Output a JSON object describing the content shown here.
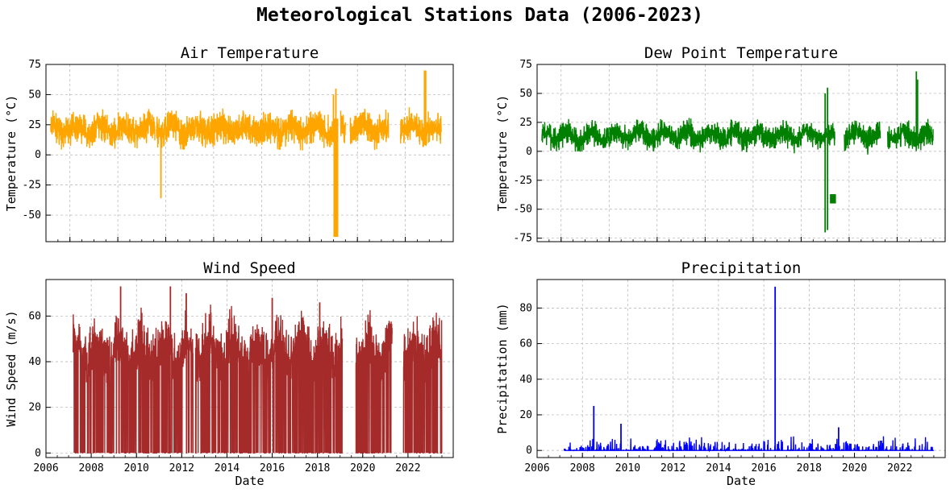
{
  "figure": {
    "title": "Meteorological Stations Data (2006-2023)"
  },
  "chart_data": [
    {
      "type": "line",
      "title": "Air Temperature",
      "xlabel": "",
      "ylabel": "Temperature (°C)",
      "color": "#ffa500",
      "xlim": [
        2007.0,
        2024.0
      ],
      "ylim": [
        -72,
        75
      ],
      "yticks": [
        -50,
        -25,
        0,
        25,
        50,
        75
      ],
      "xticks": [],
      "grid": true,
      "bands": [
        [
          2007.2,
          2011.55
        ],
        [
          2011.6,
          2019.1
        ],
        [
          2019.3,
          2019.5
        ],
        [
          2019.7,
          2021.3
        ],
        [
          2021.8,
          2023.5
        ]
      ],
      "base": [
        18,
        25
      ],
      "spread": [
        8,
        24
      ],
      "outliers": [
        {
          "x": 2011.8,
          "y": -36
        },
        {
          "x": 2019.0,
          "y": 50
        },
        {
          "x": 2019.1,
          "y": 55
        },
        {
          "x": 2022.8,
          "y": 70
        },
        {
          "x": 2022.85,
          "y": 70
        }
      ],
      "block": {
        "x0": 2019.0,
        "x1": 2019.2,
        "y0": -68,
        "y1": 30
      }
    },
    {
      "type": "line",
      "title": "Dew Point Temperature",
      "xlabel": "",
      "ylabel": "Temperature (°C)",
      "color": "#008000",
      "xlim": [
        2007.0,
        2024.0
      ],
      "ylim": [
        -78,
        75
      ],
      "yticks": [
        -75,
        -50,
        -25,
        0,
        25,
        50,
        75
      ],
      "xticks": [],
      "grid": true,
      "bands": [
        [
          2007.2,
          2019.4
        ],
        [
          2019.8,
          2021.3
        ],
        [
          2021.6,
          2023.5
        ]
      ],
      "base": [
        10,
        17
      ],
      "spread": [
        6,
        20
      ],
      "outliers": [
        {
          "x": 2019.0,
          "y": 50
        },
        {
          "x": 2019.1,
          "y": 55
        },
        {
          "x": 2019.0,
          "y": -70
        },
        {
          "x": 2019.1,
          "y": -68
        },
        {
          "x": 2022.8,
          "y": 69
        },
        {
          "x": 2022.85,
          "y": 62
        }
      ],
      "block": {
        "x0": 2019.2,
        "x1": 2019.45,
        "y0": -45,
        "y1": -37
      }
    },
    {
      "type": "line",
      "title": "Wind Speed",
      "xlabel": "Date",
      "ylabel": "Wind Speed (m/s)",
      "color": "#a52a2a",
      "xlim": [
        2006.0,
        2024.0
      ],
      "ylim": [
        -2,
        76
      ],
      "yticks": [
        0,
        20,
        40,
        60
      ],
      "xticks": [
        "2006",
        "2008",
        "2010",
        "2012",
        "2014",
        "2016",
        "2018",
        "2020",
        "2022"
      ],
      "grid": true,
      "bands": [
        [
          2007.2,
          2011.5
        ],
        [
          2011.55,
          2012.5
        ],
        [
          2012.6,
          2019.1
        ],
        [
          2019.7,
          2021.3
        ],
        [
          2021.8,
          2023.5
        ]
      ],
      "base": [
        38,
        48
      ],
      "spread": [
        4,
        25
      ],
      "outliers": [
        {
          "x": 2009.3,
          "y": 73
        },
        {
          "x": 2011.5,
          "y": 73
        },
        {
          "x": 2012.2,
          "y": 70
        },
        {
          "x": 2016.0,
          "y": 68
        },
        {
          "x": 2018.1,
          "y": 66
        }
      ],
      "block": null
    },
    {
      "type": "line",
      "title": "Precipitation",
      "xlabel": "Date",
      "ylabel": "Precipitation (mm)",
      "color": "#0000ff",
      "xlim": [
        2006.0,
        2024.0
      ],
      "ylim": [
        -4,
        96
      ],
      "yticks": [
        0,
        20,
        40,
        60,
        80
      ],
      "xticks": [
        "2006",
        "2008",
        "2010",
        "2012",
        "2014",
        "2016",
        "2018",
        "2020",
        "2022"
      ],
      "grid": true,
      "bands": [
        [
          2007.2,
          2023.5
        ]
      ],
      "base": [
        0,
        2
      ],
      "spread": [
        0,
        8
      ],
      "outliers": [
        {
          "x": 2008.5,
          "y": 25
        },
        {
          "x": 2016.5,
          "y": 92
        },
        {
          "x": 2009.7,
          "y": 15
        },
        {
          "x": 2019.3,
          "y": 13
        }
      ],
      "block": null
    }
  ]
}
